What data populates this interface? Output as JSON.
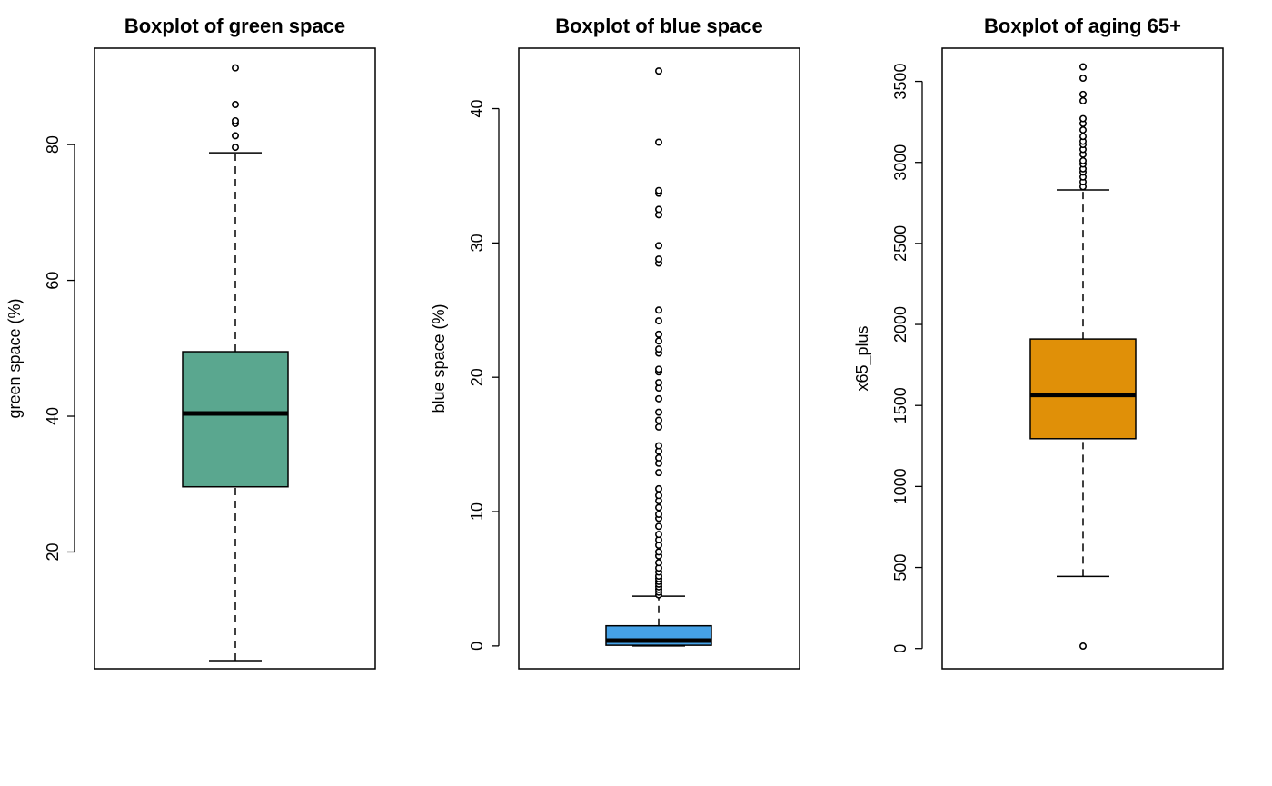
{
  "chart_data": [
    {
      "type": "boxplot",
      "title": "Boxplot of green space",
      "ylabel": "green space (%)",
      "xlabel": "",
      "ylim": [
        2.8,
        94.2
      ],
      "yticks": [
        20,
        40,
        60,
        80
      ],
      "tick_labels": [
        "20",
        "40",
        "60",
        "80"
      ],
      "box_color": "#5aa78f",
      "stats": {
        "whisker_low": 4,
        "q1": 29.6,
        "median": 40.4,
        "q3": 49.5,
        "whisker_high": 78.8
      },
      "outliers": [
        79.6,
        81.3,
        83.1,
        83.5,
        85.9,
        91.3
      ]
    },
    {
      "type": "boxplot",
      "title": "Boxplot of blue space",
      "ylabel": "blue space (%)",
      "xlabel": "",
      "ylim": [
        -1.7,
        44.5
      ],
      "yticks": [
        0,
        10,
        20,
        30,
        40
      ],
      "tick_labels": [
        "0",
        "10",
        "20",
        "30",
        "40"
      ],
      "box_color": "#45a1e6",
      "stats": {
        "whisker_low": 0,
        "q1": 0.05,
        "median": 0.4,
        "q3": 1.5,
        "whisker_high": 3.7
      },
      "outliers": [
        3.8,
        4.0,
        4.2,
        4.4,
        4.6,
        4.8,
        5.0,
        5.2,
        5.5,
        5.8,
        6.2,
        6.7,
        7.0,
        7.5,
        7.9,
        8.3,
        8.9,
        9.5,
        9.8,
        10.3,
        10.8,
        11.2,
        11.7,
        12.9,
        13.6,
        14.0,
        14.5,
        14.9,
        16.3,
        16.8,
        17.4,
        18.4,
        19.2,
        19.6,
        20.4,
        20.6,
        21.8,
        22.1,
        22.7,
        23.2,
        24.2,
        25.0,
        28.5,
        28.8,
        29.8,
        32.1,
        32.5,
        33.7,
        33.9,
        37.5,
        42.8
      ]
    },
    {
      "type": "boxplot",
      "title": "Boxplot of aging 65+",
      "ylabel": "x65_plus",
      "xlabel": "",
      "ylim": [
        -125,
        3705
      ],
      "yticks": [
        0,
        500,
        1000,
        1500,
        2000,
        2500,
        3000,
        3500
      ],
      "tick_labels": [
        "0",
        "500",
        "1000",
        "1500",
        "2000",
        "2500",
        "3000",
        "3500"
      ],
      "box_color": "#e09008",
      "stats": {
        "whisker_low": 445,
        "q1": 1295,
        "median": 1565,
        "q3": 1910,
        "whisker_high": 2830
      },
      "outliers": [
        15,
        2850,
        2880,
        2910,
        2940,
        2960,
        2990,
        3010,
        3050,
        3080,
        3110,
        3130,
        3160,
        3200,
        3240,
        3270,
        3380,
        3420,
        3520,
        3590
      ]
    }
  ]
}
